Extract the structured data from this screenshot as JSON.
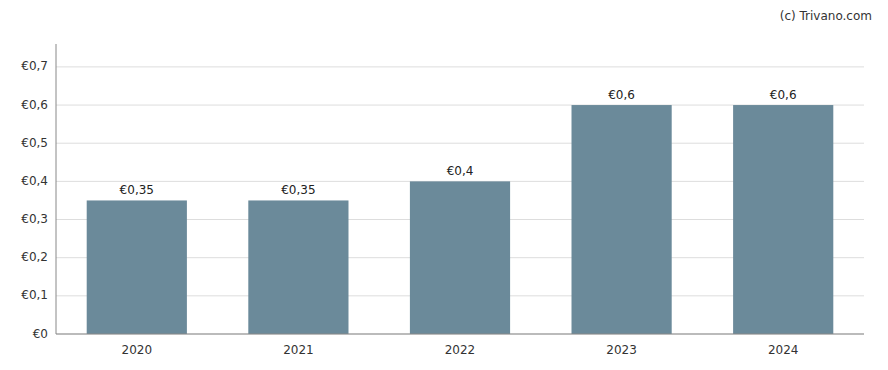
{
  "chart_data": {
    "type": "bar",
    "categories": [
      "2020",
      "2021",
      "2022",
      "2023",
      "2024"
    ],
    "values": [
      0.35,
      0.35,
      0.4,
      0.6,
      0.6
    ],
    "value_labels": [
      "€0,35",
      "€0,35",
      "€0,4",
      "€0,6",
      "€0,6"
    ],
    "color": "#6b8a9a",
    "ylim": [
      0,
      0.76
    ],
    "yticks": [
      {
        "value": 0,
        "label": "€0"
      },
      {
        "value": 0.1,
        "label": "€0,1"
      },
      {
        "value": 0.2,
        "label": "€0,2"
      },
      {
        "value": 0.3,
        "label": "€0,3"
      },
      {
        "value": 0.4,
        "label": "€0,4"
      },
      {
        "value": 0.5,
        "label": "€0,5"
      },
      {
        "value": 0.6,
        "label": "€0,6"
      },
      {
        "value": 0.7,
        "label": "€0,7"
      }
    ],
    "grid": true,
    "data_labels": true,
    "annotations": [
      "(c) Trivano.com"
    ]
  }
}
